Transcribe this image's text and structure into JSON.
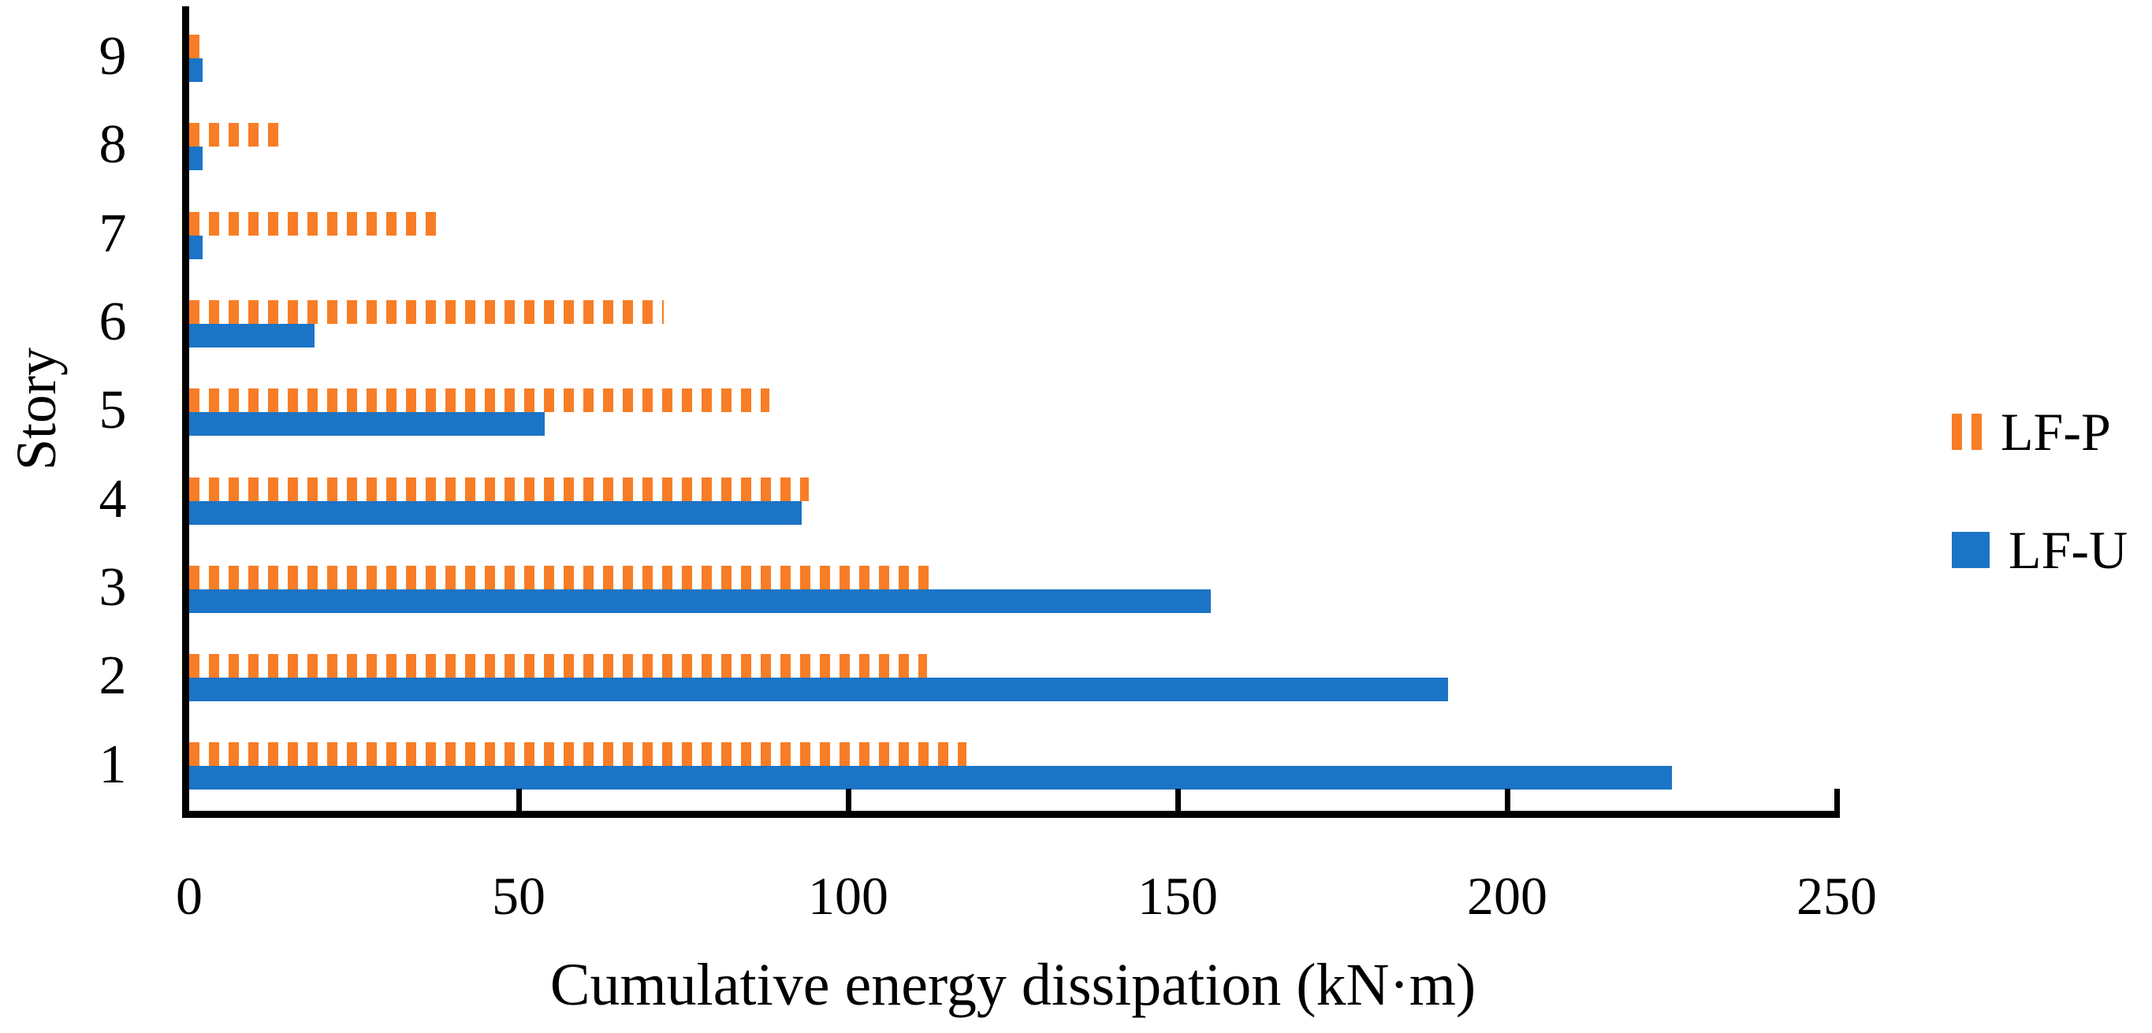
{
  "chart_data": {
    "type": "bar",
    "orientation": "horizontal",
    "title": "",
    "xlabel": "Cumulative energy dissipation (kN·m)",
    "ylabel": "Story",
    "categories": [
      9,
      8,
      7,
      6,
      5,
      4,
      3,
      2,
      1
    ],
    "series": [
      {
        "name": "LF-P",
        "pattern": "vertical-dashes",
        "color": "#F87D26",
        "values": [
          2,
          14,
          38,
          72,
          88,
          94,
          113,
          112,
          118
        ]
      },
      {
        "name": "LF-U",
        "pattern": "solid",
        "color": "#1B74C5",
        "values": [
          2,
          2,
          2,
          19,
          54,
          93,
          155,
          191,
          225
        ]
      }
    ],
    "xlim": [
      0,
      250
    ],
    "xticks": [
      0,
      50,
      100,
      150,
      200,
      250
    ],
    "grid": false,
    "legend_position": "right",
    "axis_color": "#000000",
    "background_color": "#FFFFFF"
  }
}
